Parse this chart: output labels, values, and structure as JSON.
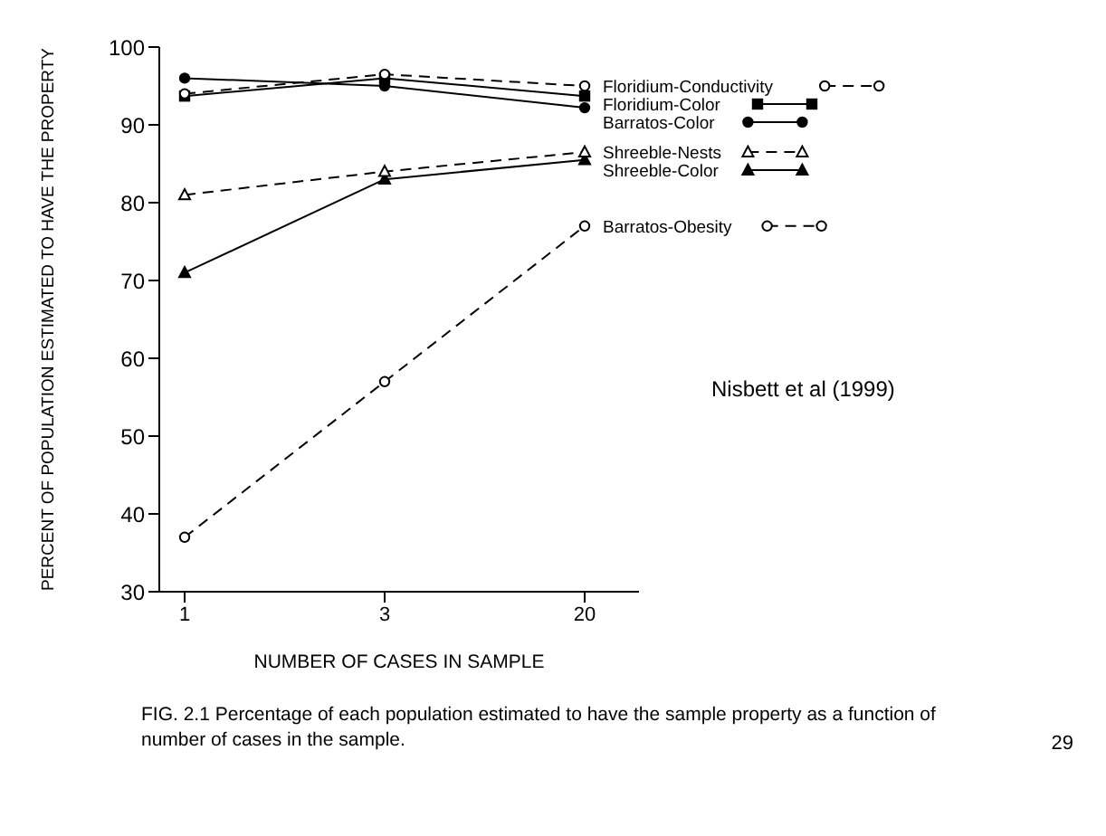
{
  "chart_data": {
    "type": "line",
    "xlabel": "NUMBER OF CASES IN SAMPLE",
    "ylabel": "PERCENT OF POPULATION ESTIMATED TO HAVE THE PROPERTY",
    "categories": [
      "1",
      "3",
      "20"
    ],
    "ylim": [
      30,
      100
    ],
    "yticks": [
      30,
      40,
      50,
      60,
      70,
      80,
      90,
      100
    ],
    "legend": "right",
    "series": [
      {
        "name": "Floridium-Conductivity",
        "color": "#000000",
        "values": [
          94,
          96.5,
          95
        ],
        "marker": "circle",
        "line_style": "dashed"
      },
      {
        "name": "Floridium-Color",
        "color": "#000000",
        "values": [
          93.7,
          96,
          93.7
        ],
        "marker": "square",
        "line_style": "solid"
      },
      {
        "name": "Barratos-Color",
        "color": "#000000",
        "values": [
          96,
          95,
          92.2
        ],
        "marker": "circle",
        "line_style": "solid"
      },
      {
        "name": "Shreeble-Nests",
        "color": "#000000",
        "values": [
          81,
          84,
          86.5
        ],
        "marker": "triangle",
        "line_style": "dashed"
      },
      {
        "name": "Shreeble-Color",
        "color": "#000000",
        "values": [
          71,
          83,
          85.5
        ],
        "marker": "triangle",
        "line_style": "solid"
      },
      {
        "name": "Barratos-Obesity",
        "color": "#000000",
        "values": [
          37,
          57,
          77
        ],
        "marker": "circle",
        "line_style": "dashed"
      }
    ],
    "annotations": [
      "Nisbett et al (1999)",
      "FIG. 2.1  Percentage of each population estimated to have the sample property as a function of number of cases in the sample.",
      "29"
    ]
  }
}
